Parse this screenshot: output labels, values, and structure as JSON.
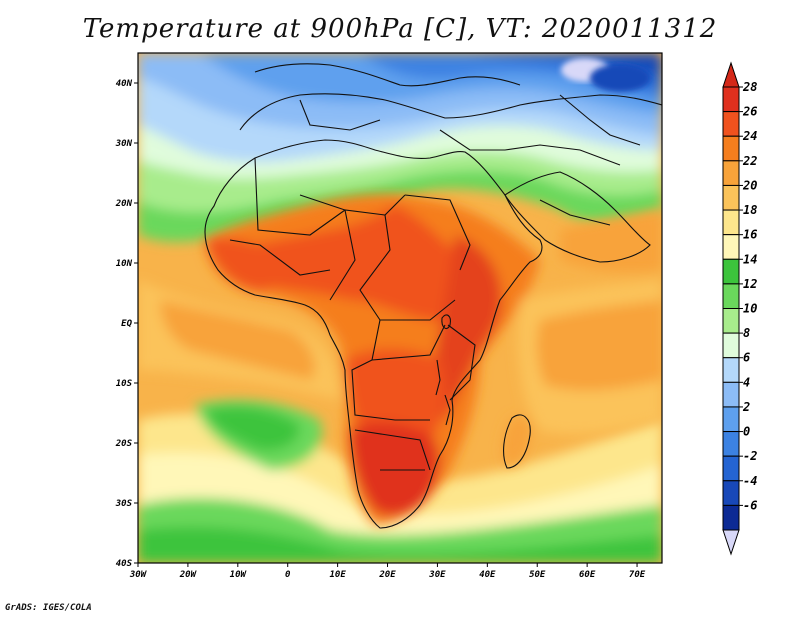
{
  "title": "Temperature at 900hPa [C], VT: 2020011312",
  "credit": "GrADS: IGES/COLA",
  "map": {
    "variable": "Temperature",
    "level": "900hPa",
    "units": "C",
    "valid_time": "2020011312",
    "lat_range": [
      -40,
      45
    ],
    "lon_range": [
      -30,
      75
    ],
    "lat_ticks": [
      {
        "value": 40,
        "label": "40N"
      },
      {
        "value": 30,
        "label": "30N"
      },
      {
        "value": 20,
        "label": "20N"
      },
      {
        "value": 10,
        "label": "10N"
      },
      {
        "value": 0,
        "label": "EQ"
      },
      {
        "value": -10,
        "label": "10S"
      },
      {
        "value": -20,
        "label": "20S"
      },
      {
        "value": -30,
        "label": "30S"
      },
      {
        "value": -40,
        "label": "40S"
      }
    ],
    "lon_ticks": [
      {
        "value": -30,
        "label": "30W"
      },
      {
        "value": -20,
        "label": "20W"
      },
      {
        "value": -10,
        "label": "10W"
      },
      {
        "value": 0,
        "label": "0"
      },
      {
        "value": 10,
        "label": "10E"
      },
      {
        "value": 20,
        "label": "20E"
      },
      {
        "value": 30,
        "label": "30E"
      },
      {
        "value": 40,
        "label": "40E"
      },
      {
        "value": 50,
        "label": "50E"
      },
      {
        "value": 60,
        "label": "60E"
      },
      {
        "value": 70,
        "label": "70E"
      }
    ]
  },
  "colorbar": {
    "levels": [
      {
        "label": "28",
        "color": "#e0301e"
      },
      {
        "label": "26",
        "color": "#f0521e"
      },
      {
        "label": "24",
        "color": "#f57e1e"
      },
      {
        "label": "22",
        "color": "#f8a33a"
      },
      {
        "label": "20",
        "color": "#fbc35a"
      },
      {
        "label": "18",
        "color": "#fde68c"
      },
      {
        "label": "16",
        "color": "#fff7b8"
      },
      {
        "label": "14",
        "color": "#3cc43c"
      },
      {
        "label": "12",
        "color": "#6ad85c"
      },
      {
        "label": "10",
        "color": "#a8ec8c"
      },
      {
        "label": "8",
        "color": "#e0fcdc"
      },
      {
        "label": "6",
        "color": "#b4d8fa"
      },
      {
        "label": "4",
        "color": "#8cbcf6"
      },
      {
        "label": "2",
        "color": "#5ea0ee"
      },
      {
        "label": "0",
        "color": "#3c82e2"
      },
      {
        "label": "-2",
        "color": "#2464d2"
      },
      {
        "label": "-4",
        "color": "#1848b8"
      },
      {
        "label": "-6",
        "color": "#0c2a94"
      }
    ],
    "top_arrow_color": "#d42818",
    "bottom_arrow_color": "#d8d8f8"
  },
  "fields": {
    "ocean_warm": "#f8b34a",
    "ocean_mid": "#fbc862",
    "sahara_cold": "#a8d0f5",
    "med_blue": "#5e9ee8",
    "east_cold": "#2a5ccc",
    "sahel_hot": "#f06828",
    "africa_hot": "#e4431c",
    "south_ocean": "#4ed24c",
    "south_pale": "#fef2a6"
  }
}
